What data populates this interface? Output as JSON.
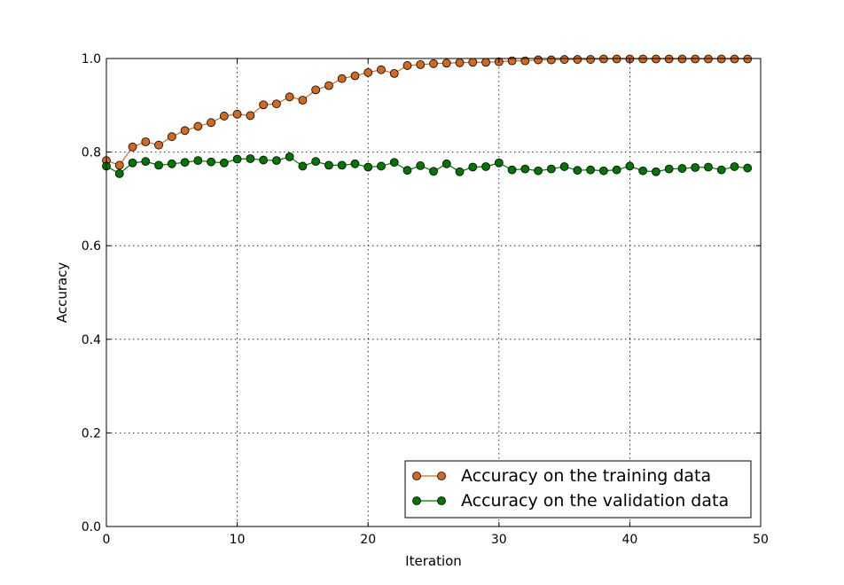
{
  "chart_data": {
    "type": "line",
    "title": "",
    "xlabel": "Iteration",
    "ylabel": "Accuracy",
    "xlim": [
      0,
      50
    ],
    "ylim": [
      0.0,
      1.0
    ],
    "grid": true,
    "legend_position": "lower-right",
    "x_ticks": [
      0,
      10,
      20,
      30,
      40,
      50
    ],
    "x_tick_labels": [
      "0",
      "10",
      "20",
      "30",
      "40",
      "50"
    ],
    "y_ticks": [
      0.0,
      0.2,
      0.4,
      0.6,
      0.8,
      1.0
    ],
    "y_tick_labels": [
      "0.0",
      "0.2",
      "0.4",
      "0.6",
      "0.8",
      "1.0"
    ],
    "x": [
      0,
      1,
      2,
      3,
      4,
      5,
      6,
      7,
      8,
      9,
      10,
      11,
      12,
      13,
      14,
      15,
      16,
      17,
      18,
      19,
      20,
      21,
      22,
      23,
      24,
      25,
      26,
      27,
      28,
      29,
      30,
      31,
      32,
      33,
      34,
      35,
      36,
      37,
      38,
      39,
      40,
      41,
      42,
      43,
      44,
      45,
      46,
      47,
      48,
      49
    ],
    "series": [
      {
        "name": "Accuracy on the training data",
        "color": "#d2691e",
        "values": [
          0.782,
          0.772,
          0.811,
          0.822,
          0.815,
          0.833,
          0.846,
          0.855,
          0.863,
          0.877,
          0.881,
          0.878,
          0.901,
          0.903,
          0.918,
          0.911,
          0.933,
          0.942,
          0.957,
          0.963,
          0.97,
          0.976,
          0.968,
          0.985,
          0.987,
          0.989,
          0.99,
          0.991,
          0.992,
          0.992,
          0.993,
          0.995,
          0.995,
          0.997,
          0.997,
          0.998,
          0.998,
          0.998,
          0.999,
          0.999,
          0.999,
          0.999,
          0.999,
          0.999,
          0.999,
          0.999,
          0.999,
          0.999,
          0.999,
          0.999
        ]
      },
      {
        "name": "Accuracy on the validation data",
        "color": "#007700",
        "values": [
          0.77,
          0.754,
          0.777,
          0.78,
          0.772,
          0.775,
          0.778,
          0.782,
          0.779,
          0.777,
          0.785,
          0.786,
          0.783,
          0.782,
          0.79,
          0.77,
          0.78,
          0.772,
          0.772,
          0.775,
          0.768,
          0.77,
          0.778,
          0.761,
          0.771,
          0.759,
          0.775,
          0.758,
          0.768,
          0.769,
          0.777,
          0.762,
          0.764,
          0.76,
          0.764,
          0.769,
          0.761,
          0.762,
          0.76,
          0.762,
          0.77,
          0.76,
          0.758,
          0.764,
          0.765,
          0.767,
          0.768,
          0.762,
          0.769,
          0.766
        ]
      }
    ]
  }
}
